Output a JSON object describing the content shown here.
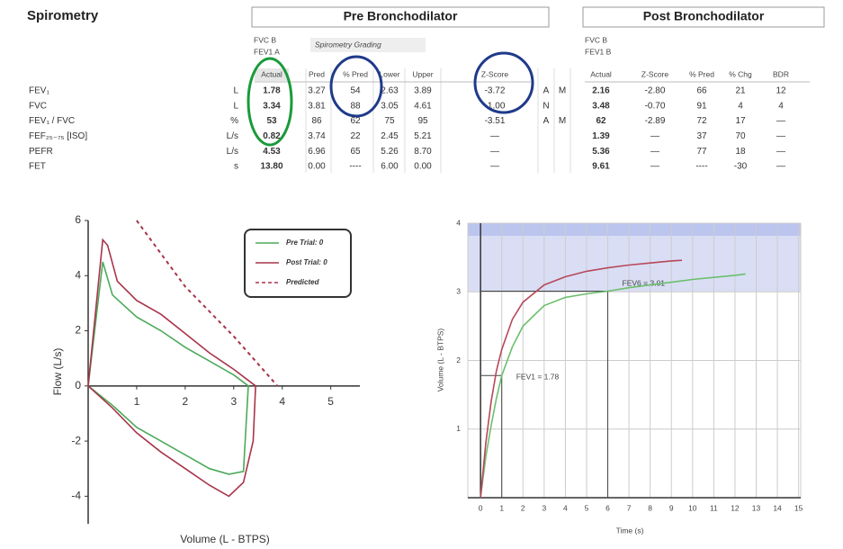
{
  "header": {
    "title": "Spirometry",
    "pre": "Pre Bronchodilator",
    "post": "Post Bronchodilator",
    "pre_trials": [
      "FVC  B",
      "FEV1  A"
    ],
    "grading": "Spirometry Grading",
    "post_trials": [
      "FVC  B",
      "FEV1  B"
    ]
  },
  "table": {
    "pre_columns": [
      "Actual",
      "Pred",
      "% Pred",
      "Lower",
      "Upper",
      "Z-Score"
    ],
    "post_columns": [
      "Actual",
      "Z-Score",
      "% Pred",
      "% Chg",
      "BDR"
    ],
    "rows": [
      {
        "name": "FEV₁",
        "unit": "L",
        "pre": [
          "1.78",
          "3.27",
          "54",
          "2.63",
          "3.89",
          "-3.72"
        ],
        "grade": [
          "A",
          "M"
        ],
        "post": [
          "2.16",
          "-2.80",
          "66",
          "21",
          "12"
        ]
      },
      {
        "name": "FVC",
        "unit": "L",
        "pre": [
          "3.34",
          "3.81",
          "88",
          "3.05",
          "4.61",
          "-1.00"
        ],
        "grade": [
          "N"
        ],
        "post": [
          "3.48",
          "-0.70",
          "91",
          "4",
          "4"
        ]
      },
      {
        "name": "FEV₁ / FVC",
        "unit": "%",
        "pre": [
          "53",
          "86",
          "62",
          "75",
          "95",
          "-3.51"
        ],
        "grade": [
          "A",
          "M"
        ],
        "post": [
          "62",
          "-2.89",
          "72",
          "17",
          "—"
        ]
      },
      {
        "name": "FEF₂₅₋₇₅ [ISO]",
        "unit": "L/s",
        "pre": [
          "0.82",
          "3.74",
          "22",
          "2.45",
          "5.21",
          "—"
        ],
        "post": [
          "1.39",
          "—",
          "37",
          "70",
          "—"
        ]
      },
      {
        "name": "PEFR",
        "unit": "L/s",
        "pre": [
          "4.53",
          "6.96",
          "65",
          "5.26",
          "8.70",
          "—"
        ],
        "post": [
          "5.36",
          "—",
          "77",
          "18",
          "—"
        ]
      },
      {
        "name": "FET",
        "unit": "s",
        "pre": [
          "13.80",
          "0.00",
          "----",
          "6.00",
          "0.00",
          "—"
        ],
        "post": [
          "9.61",
          "—",
          "----",
          "-30",
          "—"
        ]
      }
    ]
  },
  "chart_data": [
    {
      "type": "line",
      "xlabel": "Volume (L - BTPS)",
      "ylabel": "Flow (L/s)",
      "xlim": [
        0,
        5.6
      ],
      "ylim": [
        -5,
        6
      ],
      "xticks": [
        1,
        2,
        3,
        4,
        5
      ],
      "yticks": [
        -4,
        -2,
        0,
        2,
        4,
        6
      ],
      "grid": false,
      "legend": "upper right",
      "series": [
        {
          "name": "Pre Trial: 0",
          "color": "#4caa5a",
          "style": "solid",
          "x": [
            0,
            0.3,
            0.5,
            1,
            1.5,
            2,
            2.5,
            3,
            3.3,
            3.2,
            2.9,
            2.5,
            2,
            1.5,
            1,
            0.5,
            0
          ],
          "values": [
            0,
            4.5,
            3.3,
            2.5,
            2.0,
            1.4,
            0.9,
            0.4,
            0,
            -3.1,
            -3.2,
            -3.0,
            -2.5,
            -2.0,
            -1.5,
            -0.7,
            0
          ]
        },
        {
          "name": "Post Trial: 0",
          "color": "#a8344a",
          "style": "solid",
          "x": [
            0,
            0.3,
            0.4,
            0.6,
            1,
            1.5,
            2,
            2.5,
            3,
            3.45,
            3.4,
            3.2,
            2.9,
            2.5,
            2,
            1.5,
            1,
            0.5,
            0
          ],
          "values": [
            0,
            5.3,
            5.1,
            3.8,
            3.1,
            2.6,
            1.9,
            1.2,
            0.6,
            0,
            -2,
            -3.5,
            -4.0,
            -3.6,
            -3,
            -2.4,
            -1.7,
            -0.8,
            0
          ]
        },
        {
          "name": "Predicted",
          "color": "#a8344a",
          "style": "dashed",
          "x": [
            1,
            1.5,
            2,
            2.5,
            3,
            3.5,
            3.9
          ],
          "values": [
            6,
            4.8,
            3.6,
            2.7,
            1.8,
            0.8,
            0
          ]
        }
      ]
    },
    {
      "type": "line",
      "xlabel": "Time (s)",
      "ylabel": "Volume (L - BTPS)",
      "xlim": [
        -0.6,
        15.1
      ],
      "ylim": [
        0,
        4
      ],
      "xticks": [
        0,
        1,
        2,
        3,
        4,
        5,
        6,
        7,
        8,
        9,
        10,
        11,
        12,
        13,
        14,
        15
      ],
      "yticks": [
        1,
        2,
        3,
        4
      ],
      "grid": true,
      "shade": [
        3,
        4
      ],
      "markers": [
        {
          "x": 1,
          "y": 1.78,
          "label": "FEV1 = 1.78"
        },
        {
          "x": 6,
          "y": 3.01,
          "label": "FEV6 = 3.01"
        }
      ],
      "series": [
        {
          "color": "#6cbf6c",
          "style": "solid",
          "x": [
            0,
            0.25,
            0.5,
            0.75,
            1,
            1.5,
            2,
            3,
            4,
            5,
            6,
            7,
            8,
            9,
            10,
            11,
            12,
            12.5
          ],
          "values": [
            0,
            0.6,
            1.05,
            1.45,
            1.78,
            2.2,
            2.5,
            2.8,
            2.92,
            2.97,
            3.01,
            3.06,
            3.1,
            3.14,
            3.18,
            3.21,
            3.24,
            3.26
          ]
        },
        {
          "color": "#b8485a",
          "style": "solid",
          "x": [
            0,
            0.25,
            0.5,
            0.75,
            1,
            1.5,
            2,
            3,
            4,
            5,
            6,
            7,
            8,
            9,
            9.5
          ],
          "values": [
            0,
            0.8,
            1.4,
            1.85,
            2.16,
            2.6,
            2.85,
            3.1,
            3.22,
            3.3,
            3.35,
            3.39,
            3.42,
            3.45,
            3.46
          ]
        }
      ]
    }
  ]
}
